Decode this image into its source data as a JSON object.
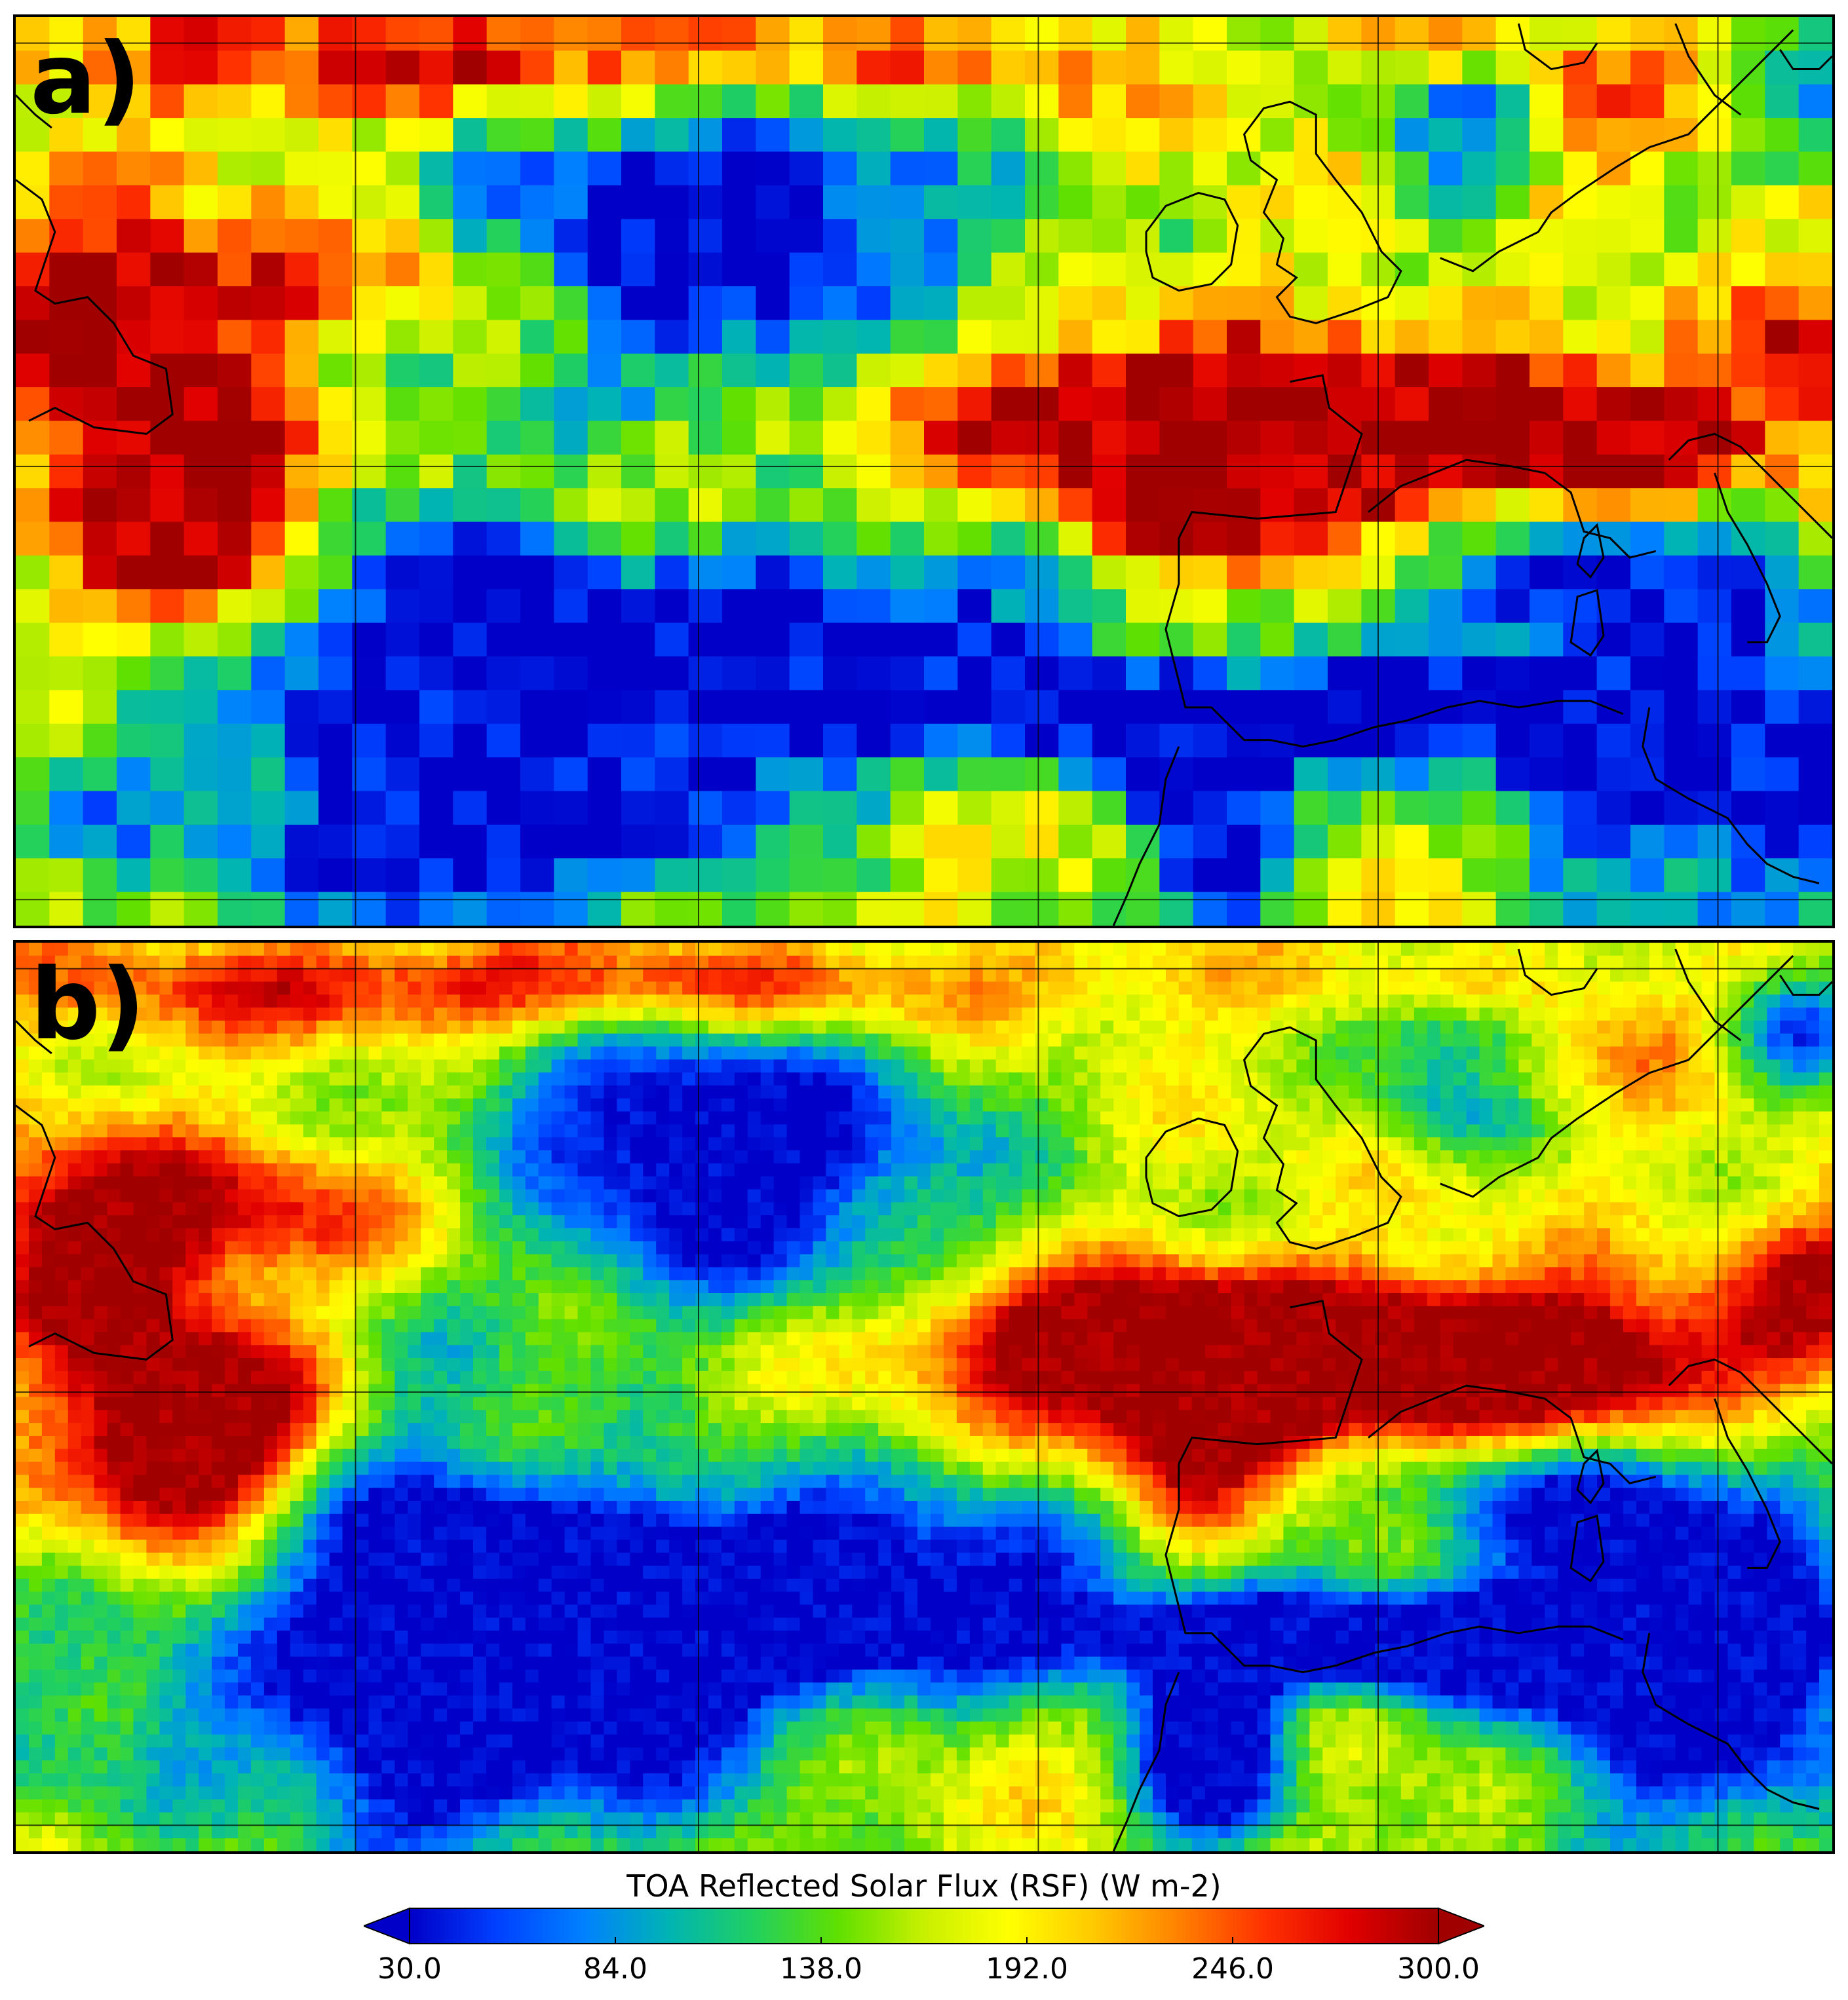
{
  "panels": [
    {
      "label": "a)",
      "resolution": "coarse"
    },
    {
      "label": "b)",
      "resolution": "fine"
    }
  ],
  "colorbar": {
    "title": "TOA Reflected Solar Flux (RSF) (W m-2)",
    "min": 30.0,
    "max": 300.0,
    "ticks": [
      "30.0",
      "84.0",
      "138.0",
      "192.0",
      "246.0",
      "300.0"
    ],
    "extend": "both",
    "colors": [
      "#0000c8",
      "#0040ff",
      "#0080ff",
      "#00b4b4",
      "#20d060",
      "#60e000",
      "#c8f000",
      "#ffff00",
      "#ffc800",
      "#ff8000",
      "#ff3000",
      "#e00000",
      "#a00000"
    ]
  },
  "map": {
    "grid_lines": true,
    "coastline_color": "#000000"
  }
}
